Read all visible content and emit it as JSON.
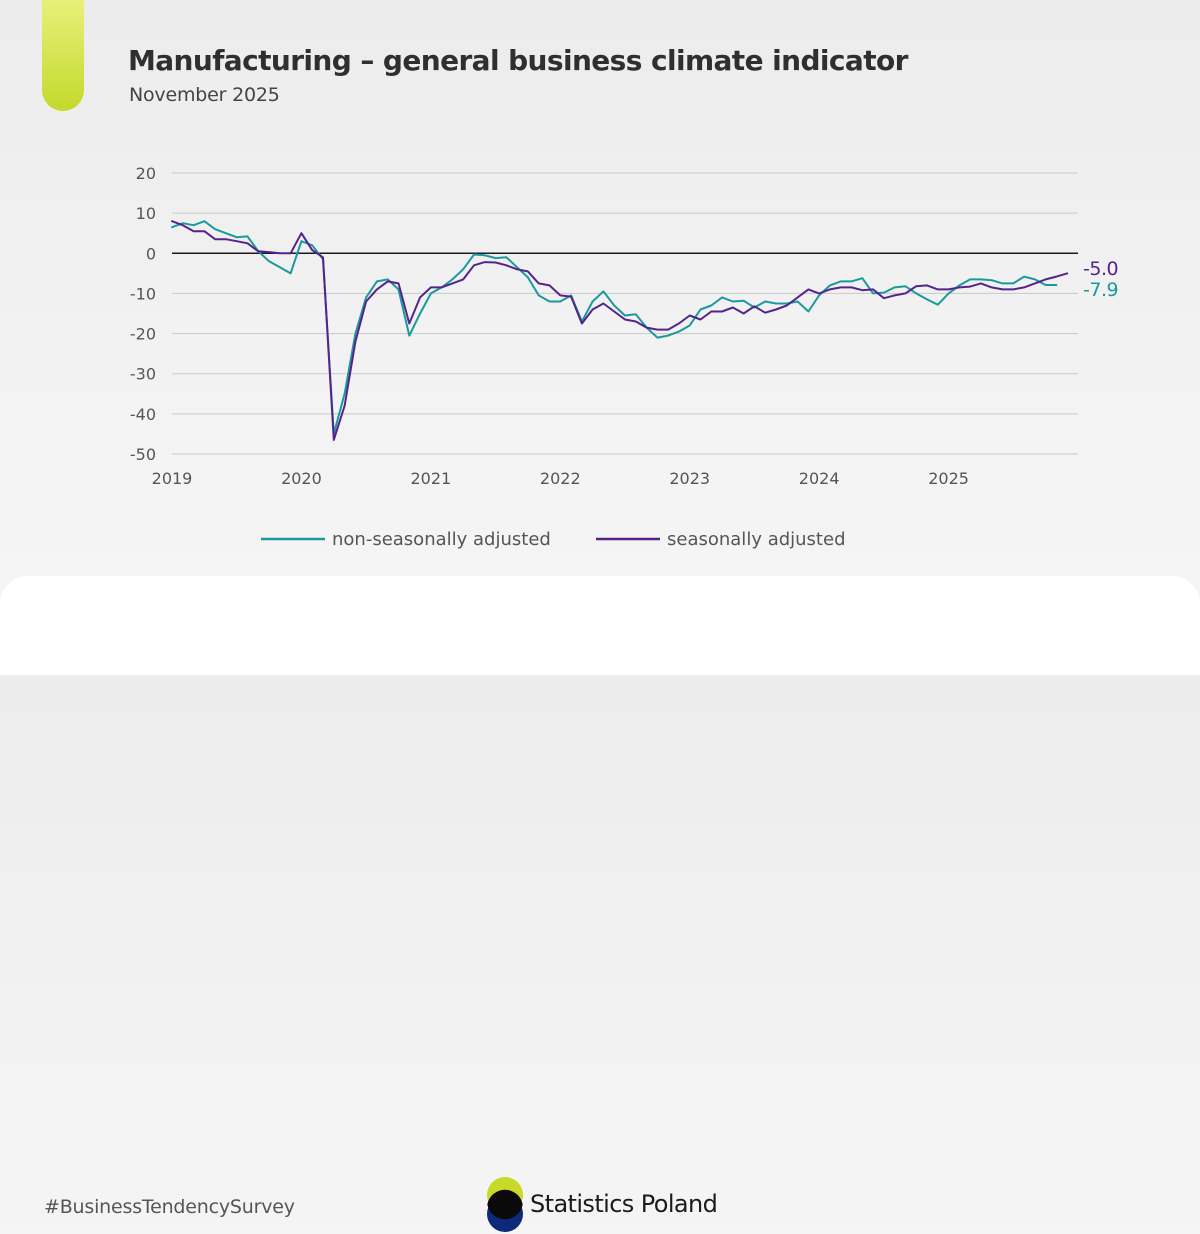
{
  "header": {
    "title": "Manufacturing – general business climate indicator",
    "subtitle": "November 2025"
  },
  "footer": {
    "hashtag": "#BusinessTendencySurvey",
    "logo_text": "Statistics Poland",
    "logo_colors": {
      "top": "#c8d92a",
      "bottom": "#0d2a7a"
    }
  },
  "chart_data": {
    "type": "line",
    "title": "Manufacturing – general business climate indicator",
    "xlabel": "",
    "ylabel": "",
    "ylim": [
      -50,
      20
    ],
    "yticks": [
      20,
      10,
      0,
      -10,
      -20,
      -30,
      -40,
      -50
    ],
    "ytick_labels": [
      "20",
      "10",
      "0",
      "-10",
      "-20",
      "-30",
      "-40",
      "-50"
    ],
    "xlim": [
      2019,
      2026
    ],
    "xticks": [
      2019,
      2020,
      2021,
      2022,
      2023,
      2024,
      2025
    ],
    "xtick_labels": [
      "2019",
      "2020",
      "2021",
      "2022",
      "2023",
      "2024",
      "2025"
    ],
    "grid": true,
    "zero_line": true,
    "legend_position": "bottom",
    "start": "2019-01",
    "frequency": "monthly",
    "series": [
      {
        "name": "non-seasonally adjusted",
        "color": "#1a9a9c",
        "end_label": "-7.9",
        "values": [
          6.5,
          7.5,
          7,
          8,
          6,
          5,
          4,
          4.2,
          0.5,
          -2,
          -3.5,
          -5,
          3,
          2,
          -1.5,
          -45,
          -35,
          -20,
          -11,
          -7,
          -6.5,
          -9,
          -20.5,
          -15,
          -10,
          -8.5,
          -6.5,
          -4,
          -0.3,
          -0.5,
          -1.2,
          -1,
          -3.5,
          -6,
          -10.5,
          -12,
          -12,
          -10.5,
          -17,
          -12,
          -9.5,
          -13,
          -15.5,
          -15.2,
          -18.5,
          -21,
          -20.5,
          -19.5,
          -18,
          -14,
          -13,
          -11,
          -12,
          -11.8,
          -13.5,
          -12,
          -12.5,
          -12.5,
          -12,
          -14.5,
          -10.5,
          -8,
          -7,
          -7,
          -6.2,
          -10,
          -9.8,
          -8.5,
          -8.2,
          -10,
          -11.5,
          -12.8,
          -10,
          -8,
          -6.5,
          -6.5,
          -6.7,
          -7.5,
          -7.5,
          -5.8,
          -6.5,
          -7.9,
          -7.9
        ]
      },
      {
        "name": "seasonally adjusted",
        "color": "#55238c",
        "end_label": "-5.0",
        "values": [
          8,
          7,
          5.5,
          5.5,
          3.5,
          3.5,
          3,
          2.5,
          0.5,
          0.3,
          0,
          0,
          5,
          0.8,
          -1,
          -46.5,
          -38,
          -22,
          -12,
          -9,
          -7,
          -7.5,
          -17.5,
          -11,
          -8.5,
          -8.5,
          -7.5,
          -6.5,
          -3,
          -2.2,
          -2.3,
          -3,
          -4,
          -4.5,
          -7.5,
          -8,
          -10.5,
          -10.8,
          -17.5,
          -14,
          -12.5,
          -14.5,
          -16.5,
          -17,
          -18.5,
          -19,
          -19,
          -17.5,
          -15.5,
          -16.5,
          -14.5,
          -14.5,
          -13.5,
          -15,
          -13.2,
          -14.8,
          -14,
          -13,
          -11,
          -9,
          -10,
          -9,
          -8.5,
          -8.5,
          -9.2,
          -9,
          -11.2,
          -10.5,
          -10,
          -8.2,
          -8,
          -9,
          -9,
          -8.5,
          -8.3,
          -7.5,
          -8.5,
          -9,
          -9,
          -8.5,
          -7.5,
          -6.5,
          -5.8,
          -5
        ]
      }
    ]
  }
}
